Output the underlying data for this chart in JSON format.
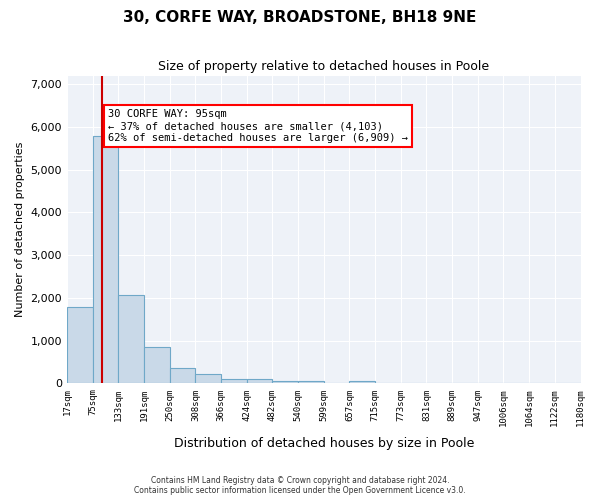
{
  "title": "30, CORFE WAY, BROADSTONE, BH18 9NE",
  "subtitle": "Size of property relative to detached houses in Poole",
  "xlabel": "Distribution of detached houses by size in Poole",
  "ylabel": "Number of detached properties",
  "bar_color": "#c9d9e8",
  "bar_edge_color": "#6fa8c8",
  "property_line_color": "#cc0000",
  "property_size": 95,
  "annotation_text": "30 CORFE WAY: 95sqm\n← 37% of detached houses are smaller (4,103)\n62% of semi-detached houses are larger (6,909) →",
  "bins": [
    17,
    75,
    133,
    191,
    250,
    308,
    366,
    424,
    482,
    540,
    599,
    657,
    715,
    773,
    831,
    889,
    947,
    1006,
    1064,
    1122,
    1180
  ],
  "bin_labels": [
    "17sqm",
    "75sqm",
    "133sqm",
    "191sqm",
    "250sqm",
    "308sqm",
    "366sqm",
    "424sqm",
    "482sqm",
    "540sqm",
    "599sqm",
    "657sqm",
    "715sqm",
    "773sqm",
    "831sqm",
    "889sqm",
    "947sqm",
    "1006sqm",
    "1064sqm",
    "1122sqm",
    "1180sqm"
  ],
  "values": [
    1780,
    5780,
    2060,
    840,
    370,
    210,
    110,
    110,
    60,
    60,
    0,
    60,
    0,
    0,
    0,
    0,
    0,
    0,
    0,
    0
  ],
  "ylim": [
    0,
    7200
  ],
  "yticks": [
    0,
    1000,
    2000,
    3000,
    4000,
    5000,
    6000,
    7000
  ],
  "footer_line1": "Contains HM Land Registry data © Crown copyright and database right 2024.",
  "footer_line2": "Contains public sector information licensed under the Open Government Licence v3.0.",
  "background_color": "#eef2f8",
  "plot_bg_color": "#eef2f8"
}
